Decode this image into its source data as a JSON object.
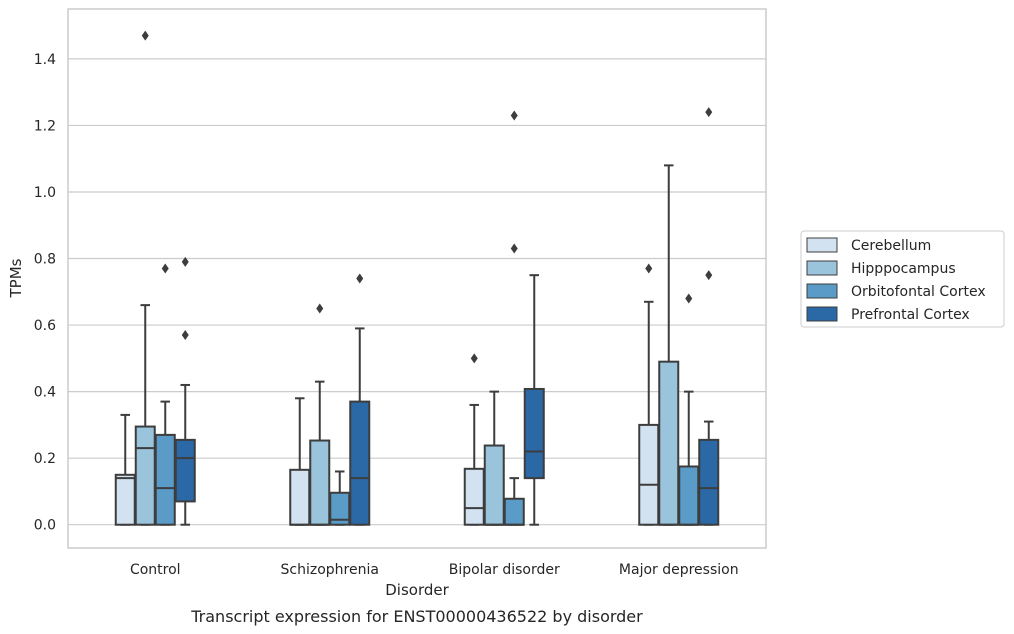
{
  "caption": "Transcript expression for ENST00000436522 by disorder",
  "chart_data": {
    "type": "box",
    "xlabel": "Disorder",
    "ylabel": "TPMs",
    "ylim": [
      -0.07,
      1.55
    ],
    "yticks": [
      0.0,
      0.2,
      0.4,
      0.6,
      0.8,
      1.0,
      1.2,
      1.4
    ],
    "ytick_labels": [
      "0.0",
      "0.2",
      "0.4",
      "0.6",
      "0.8",
      "1.0",
      "1.2",
      "1.4"
    ],
    "grid": "horizontal",
    "legend_position": "right",
    "categories": [
      "Control",
      "Schizophrenia",
      "Bipolar disorder",
      "Major depression"
    ],
    "series": [
      {
        "name": "Cerebellum",
        "color": "#d3e2f0",
        "boxes": [
          {
            "q1": 0.0,
            "median": 0.14,
            "q3": 0.15,
            "whisker_low": 0.0,
            "whisker_high": 0.33,
            "outliers": []
          },
          {
            "q1": 0.0,
            "median": 0.0,
            "q3": 0.165,
            "whisker_low": 0.0,
            "whisker_high": 0.38,
            "outliers": []
          },
          {
            "q1": 0.0,
            "median": 0.05,
            "q3": 0.168,
            "whisker_low": 0.0,
            "whisker_high": 0.36,
            "outliers": [
              0.5
            ]
          },
          {
            "q1": 0.0,
            "median": 0.12,
            "q3": 0.3,
            "whisker_low": 0.0,
            "whisker_high": 0.67,
            "outliers": [
              0.77
            ]
          }
        ]
      },
      {
        "name": "Hipppocampus",
        "color": "#9ac3dc",
        "boxes": [
          {
            "q1": 0.0,
            "median": 0.23,
            "q3": 0.295,
            "whisker_low": 0.0,
            "whisker_high": 0.66,
            "outliers": [
              1.47
            ]
          },
          {
            "q1": 0.0,
            "median": 0.0,
            "q3": 0.253,
            "whisker_low": 0.0,
            "whisker_high": 0.43,
            "outliers": [
              0.65
            ]
          },
          {
            "q1": 0.0,
            "median": 0.0,
            "q3": 0.238,
            "whisker_low": 0.0,
            "whisker_high": 0.4,
            "outliers": []
          },
          {
            "q1": 0.0,
            "median": 0.0,
            "q3": 0.49,
            "whisker_low": 0.0,
            "whisker_high": 1.08,
            "outliers": []
          }
        ]
      },
      {
        "name": "Orbitofontal Cortex",
        "color": "#5a9bc8",
        "boxes": [
          {
            "q1": 0.0,
            "median": 0.11,
            "q3": 0.27,
            "whisker_low": 0.0,
            "whisker_high": 0.37,
            "outliers": [
              0.77
            ]
          },
          {
            "q1": 0.0,
            "median": 0.015,
            "q3": 0.096,
            "whisker_low": 0.0,
            "whisker_high": 0.16,
            "outliers": []
          },
          {
            "q1": 0.0,
            "median": 0.0,
            "q3": 0.078,
            "whisker_low": 0.0,
            "whisker_high": 0.14,
            "outliers": [
              1.23,
              0.83
            ]
          },
          {
            "q1": 0.0,
            "median": 0.0,
            "q3": 0.175,
            "whisker_low": 0.0,
            "whisker_high": 0.4,
            "outliers": [
              0.68
            ]
          }
        ]
      },
      {
        "name": "Prefrontal Cortex",
        "color": "#2a68a6",
        "boxes": [
          {
            "q1": 0.07,
            "median": 0.2,
            "q3": 0.255,
            "whisker_low": 0.0,
            "whisker_high": 0.42,
            "outliers": [
              0.79,
              0.57
            ]
          },
          {
            "q1": 0.0,
            "median": 0.14,
            "q3": 0.37,
            "whisker_low": 0.0,
            "whisker_high": 0.59,
            "outliers": [
              0.74
            ]
          },
          {
            "q1": 0.14,
            "median": 0.22,
            "q3": 0.408,
            "whisker_low": 0.0,
            "whisker_high": 0.75,
            "outliers": []
          },
          {
            "q1": 0.0,
            "median": 0.11,
            "q3": 0.255,
            "whisker_low": 0.0,
            "whisker_high": 0.31,
            "outliers": [
              1.24,
              0.75
            ]
          }
        ]
      }
    ]
  }
}
